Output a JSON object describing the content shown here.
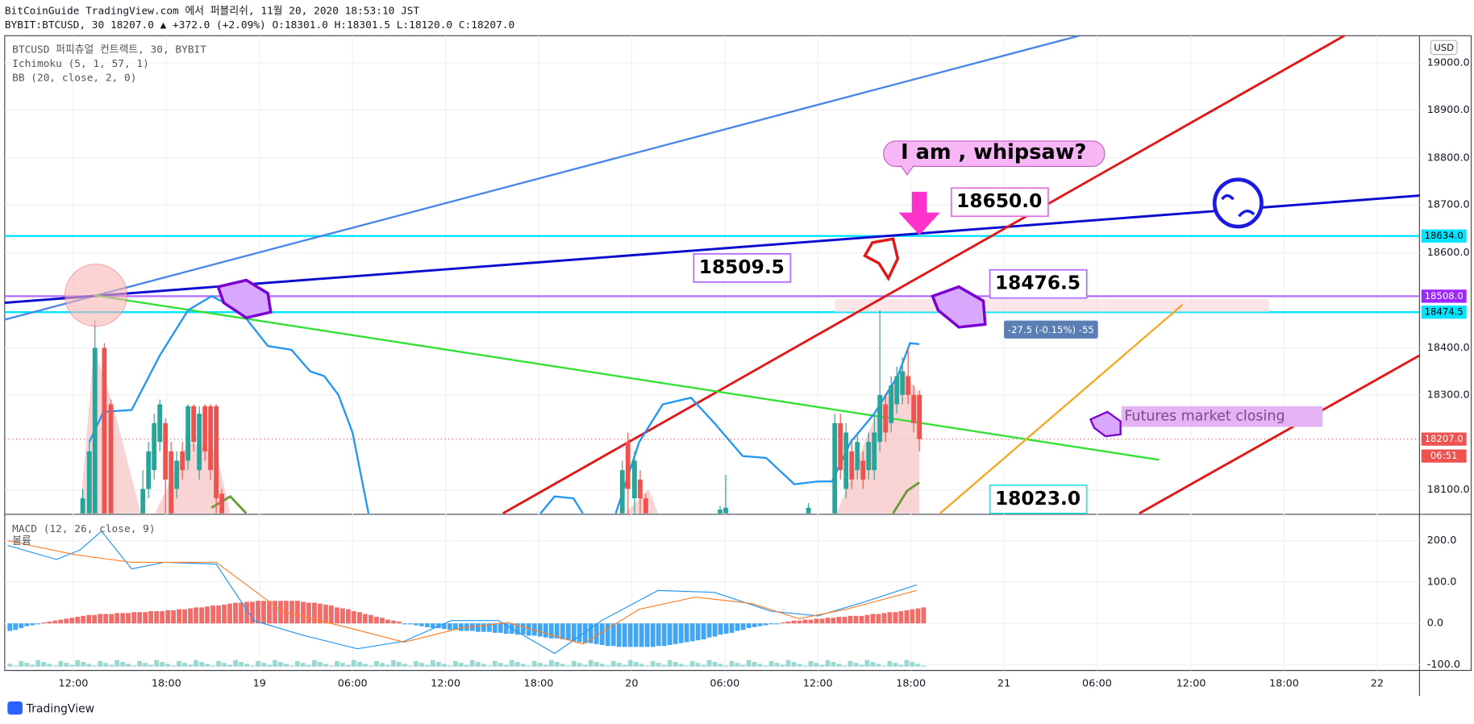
{
  "header": {
    "line1": "BitCoinGuide TradingView.com 에서 퍼블리쉬, 11월 20, 2020 18:53:10 JST",
    "line2": "BYBIT:BTCUSD, 30 18207.0 ▲ +372.0 (+2.09%) O:18301.0 H:18301.5 L:18120.0 C:18207.0"
  },
  "legend": [
    "BTCUSD 퍼피츄얼 컨트랙트, 30, BYBIT",
    "Ichimoku (5, 1, 57, 1)",
    "BB (20, close, 2, 0)"
  ],
  "price_axis": {
    "unit": "USD",
    "ticks": [
      "19000.0",
      "18900.0",
      "18800.0",
      "18700.0",
      "18600.0",
      "18400.0",
      "18300.0",
      "18100.0"
    ],
    "badges": [
      "18634.0",
      "18508.0",
      "18474.5",
      "18207.0",
      "06:51"
    ]
  },
  "macd_pane": {
    "legend": [
      "MACD (12, 26, close, 9)",
      "볼륨"
    ],
    "ticks": [
      "200.0",
      "100.0",
      "0.0",
      "-100.0"
    ]
  },
  "time_axis": [
    "12:00",
    "18:00",
    "19",
    "06:00",
    "12:00",
    "18:00",
    "20",
    "06:00",
    "12:00",
    "18:00",
    "21",
    "06:00",
    "12:00",
    "18:00",
    "22"
  ],
  "annotations": {
    "bubble": "I am , whipsaw?",
    "labels": [
      "18650.0",
      "18509.5",
      "18476.5",
      "18023.0"
    ],
    "note": "Futures market closing",
    "measure": "-27.5 (-0.15%) -55"
  },
  "footer": "TradingView"
}
